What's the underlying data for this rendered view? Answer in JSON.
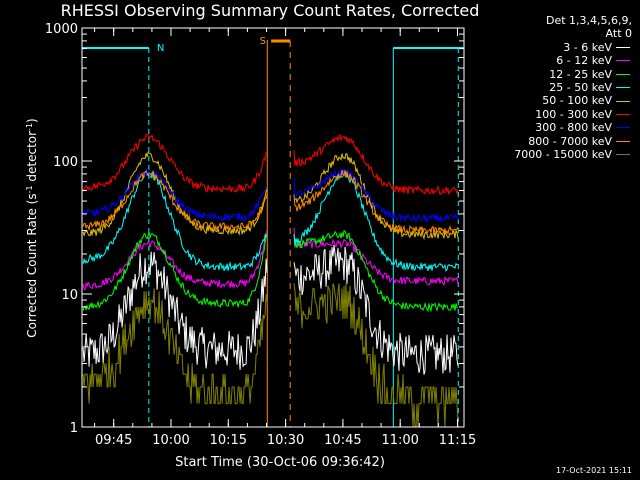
{
  "chart_data": {
    "type": "line",
    "title": "RHESSI Observing Summary Count Rates, Corrected",
    "xlabel": "Start Time (30-Oct-06 09:36:42)",
    "ylabel": "Corrected Count Rate (s⁻¹ detector⁻¹)",
    "ylabel_parts": {
      "pre": "Corrected Count Rate (s",
      "sup1": "-1",
      "mid": " detector",
      "sup2": "-1",
      "post": ")"
    },
    "yscale": "log",
    "ylim": [
      1,
      1000
    ],
    "y_ticks": [
      {
        "value": 1,
        "label": "1"
      },
      {
        "value": 10,
        "label": "10"
      },
      {
        "value": 100,
        "label": "100"
      },
      {
        "value": 1000,
        "label": "1000"
      }
    ],
    "xlim_minutes": [
      0,
      100
    ],
    "x_ticks": [
      {
        "minute": 8.3,
        "label": "09:45"
      },
      {
        "minute": 23.3,
        "label": "10:00"
      },
      {
        "minute": 38.3,
        "label": "10:15"
      },
      {
        "minute": 53.3,
        "label": "10:30"
      },
      {
        "minute": 68.3,
        "label": "10:45"
      },
      {
        "minute": 83.3,
        "label": "11:00"
      },
      {
        "minute": 98.3,
        "label": "11:15"
      }
    ],
    "legend_header": [
      "Det 1,3,4,5,6,9,",
      "Att 0"
    ],
    "series": [
      {
        "name": "3 - 6 keV",
        "color": "#ffffff",
        "profile": {
          "base": 3.5,
          "peak1": 17,
          "dip": 3.8,
          "pre_gap": 17,
          "peak2": 17,
          "after": 3.5
        }
      },
      {
        "name": "6 - 12 keV",
        "color": "#ff00ff",
        "profile": {
          "base": 11.5,
          "peak1": 24,
          "dip": 12,
          "pre_gap": 30,
          "peak2": 24,
          "after": 12.5
        }
      },
      {
        "name": "12 - 25 keV",
        "color": "#00ff00",
        "profile": {
          "base": 8,
          "peak1": 28,
          "dip": 8.5,
          "pre_gap": 30,
          "peak2": 28,
          "after": 8
        }
      },
      {
        "name": "25 - 50 keV",
        "color": "#00ffff",
        "profile": {
          "base": 18,
          "peak1": 80,
          "dip": 16,
          "pre_gap": 30,
          "peak2": 80,
          "after": 16
        }
      },
      {
        "name": "50 - 100 keV",
        "color": "#e0c000",
        "profile": {
          "base": 28,
          "peak1": 110,
          "dip": 30,
          "pre_gap": 60,
          "peak2": 110,
          "after": 28
        }
      },
      {
        "name": "100 - 300 keV",
        "color": "#ff0000",
        "profile": {
          "base": 63,
          "peak1": 150,
          "dip": 62,
          "pre_gap": 120,
          "peak2": 150,
          "after": 60
        }
      },
      {
        "name": "300 - 800 keV",
        "color": "#0000ff",
        "profile": {
          "base": 40,
          "peak1": 82,
          "dip": 38,
          "pre_gap": 70,
          "peak2": 82,
          "after": 37
        }
      },
      {
        "name": "800 - 7000 keV",
        "color": "#ff8c00",
        "profile": {
          "base": 32,
          "peak1": 80,
          "dip": 32,
          "pre_gap": 55,
          "peak2": 80,
          "after": 30
        }
      },
      {
        "name": "7000 - 15000 keV",
        "color": "#808000",
        "profile": {
          "base": 2.2,
          "peak1": 9,
          "dip": 1.8,
          "pre_gap": 10,
          "peak2": 9,
          "after": 1.6
        }
      }
    ],
    "annotations": [
      {
        "label": "N",
        "color": "#00ffff",
        "minute": 17.5
      },
      {
        "label": "S",
        "color": "#ff8c00",
        "minute": 49.5
      }
    ],
    "grid": false,
    "legend_position": "right"
  },
  "timestamp": "17-Oct-2021 15:11"
}
